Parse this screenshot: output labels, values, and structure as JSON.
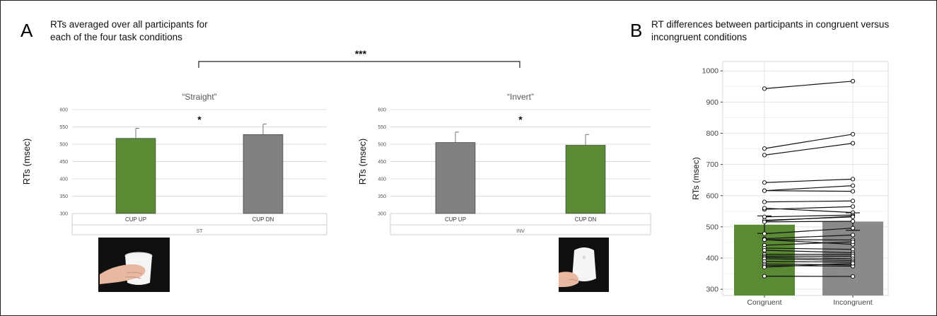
{
  "figure": {
    "panel_a_letter": "A",
    "panel_a_title_line1": "RTs averaged over all participants for",
    "panel_a_title_line2": "each of the four task conditions",
    "panel_b_letter": "B",
    "panel_b_title_line1": "RT differences between participants in congruent versus",
    "panel_b_title_line2": "incongruent conditions",
    "overall_significance": "***"
  },
  "colors": {
    "green": "#5b8a35",
    "gray": "#808080",
    "gray_light": "#8a8a8a"
  },
  "chart_data": [
    {
      "type": "bar",
      "title": "“Straight”",
      "ylabel": "RTs (msec)",
      "group_label": "ST",
      "categories": [
        "CUP UP",
        "CUP DN"
      ],
      "values": [
        517,
        528
      ],
      "errors": [
        29,
        30
      ],
      "colors": [
        "#5b8a35",
        "#808080"
      ],
      "ylim": [
        300,
        600
      ],
      "yticks": [
        300,
        350,
        400,
        450,
        500,
        550,
        600
      ],
      "significance": "*",
      "grid": true
    },
    {
      "type": "bar",
      "title": "“Invert”",
      "ylabel": "RTs (msec)",
      "group_label": "INV",
      "categories": [
        "CUP UP",
        "CUP DN"
      ],
      "values": [
        505,
        497
      ],
      "errors": [
        30,
        31
      ],
      "colors": [
        "#808080",
        "#5b8a35"
      ],
      "ylim": [
        300,
        600
      ],
      "yticks": [
        300,
        350,
        400,
        450,
        500,
        550,
        600
      ],
      "significance": "*",
      "grid": true
    },
    {
      "type": "bar",
      "ylabel": "RTs (msec)",
      "categories": [
        "Congruent",
        "Incongruent"
      ],
      "values": [
        507,
        517
      ],
      "errors": [
        28,
        28
      ],
      "colors": [
        "#5b8a35",
        "#8a8a8a"
      ],
      "ylim": [
        280,
        1030
      ],
      "yticks": [
        300,
        400,
        500,
        600,
        700,
        800,
        900,
        1000
      ],
      "grid": true,
      "participants": [
        [
          943,
          967
        ],
        [
          751,
          797
        ],
        [
          730,
          768
        ],
        [
          642,
          653
        ],
        [
          616,
          632
        ],
        [
          616,
          614
        ],
        [
          580,
          583
        ],
        [
          556,
          565
        ],
        [
          560,
          546
        ],
        [
          532,
          538
        ],
        [
          519,
          534
        ],
        [
          521,
          532
        ],
        [
          516,
          518
        ],
        [
          478,
          496
        ],
        [
          462,
          474
        ],
        [
          459,
          458
        ],
        [
          459,
          444
        ],
        [
          441,
          452
        ],
        [
          432,
          428
        ],
        [
          425,
          417
        ],
        [
          412,
          412
        ],
        [
          406,
          406
        ],
        [
          402,
          398
        ],
        [
          398,
          392
        ],
        [
          389,
          387
        ],
        [
          381,
          378
        ],
        [
          376,
          374
        ],
        [
          371,
          383
        ],
        [
          342,
          341
        ]
      ]
    }
  ]
}
